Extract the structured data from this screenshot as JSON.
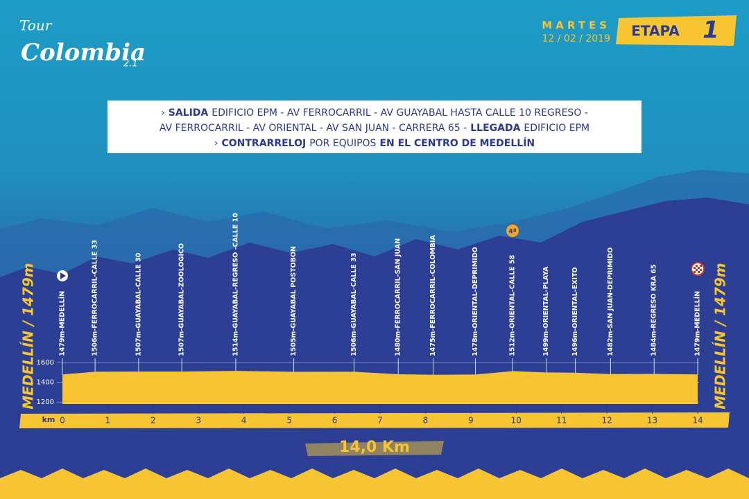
{
  "header": {
    "logo": {
      "line1": "Tour",
      "line2": "Colombia",
      "line3": "2.1"
    },
    "day": "MARTES",
    "date": "12 / 02 / 2019",
    "stage_label": "ETAPA",
    "stage_number": "1"
  },
  "route": {
    "lines": [
      [
        {
          "text": "›"
        },
        {
          "text": "SALIDA",
          "bold": true
        },
        {
          "text": "EDIFICIO EPM - AV FERROCARRIL - AV GUAYABAL HASTA CALLE 10 REGRESO -"
        }
      ],
      [
        {
          "text": "AV FERROCARRIL - AV ORIENTAL - AV SAN JUAN - CARRERA 65 -"
        },
        {
          "text": "LLEGADA",
          "bold": true
        },
        {
          "text": "EDIFICIO EPM"
        }
      ],
      [
        {
          "text": "›"
        },
        {
          "text": "CONTRARRELOJ",
          "bold": true
        },
        {
          "text": "POR EQUIPOS"
        },
        {
          "text": "EN EL CENTRO DE MEDELLÍN",
          "bold": true
        }
      ]
    ]
  },
  "chart_data": {
    "type": "area",
    "side_label": "MEDELLÍN / 1479m",
    "distance_label": "14,0 Km",
    "x_axis_label": "km",
    "x": [
      0,
      0.72,
      1.68,
      2.63,
      3.82,
      5.1,
      6.43,
      7.4,
      8.17,
      9.1,
      9.92,
      10.66,
      11.3,
      12.08,
      13.04,
      14
    ],
    "values": [
      1479,
      1506,
      1507,
      1507,
      1514,
      1505,
      1506,
      1480,
      1475,
      1478,
      1512,
      1499,
      1496,
      1482,
      1484,
      1479
    ],
    "point_labels": [
      "1479m-MEDELLÍN",
      "1506m-FERROCARRIL-CALLE 33",
      "1507m-GUAYABAL-CALLE 30",
      "1507m-GUAYABAL-ZOOLOGICO",
      "1514m-GUAYABAL-REGRESO -CALLE 10",
      "1505m-GUAYABAL POSTOBON",
      "1506m-GUAYABAL-CALLE 33",
      "1480m-FERROCARRIL-SAN JUAN",
      "1475m-FERROCARRIL-COLOMBIA",
      "1478m-ORIENTAL-DEPRIMIDO",
      "1512m-ORIENTAL-CALLE 58",
      "1499m-ORIENTAL-PLAYA",
      "1496m-ORIENTAL-EXITO",
      "1482m-SAN JUAN-DEPRIMIDO",
      "1484m-REGRESO KRA 65",
      "1479m-MEDELLÍN"
    ],
    "climb": {
      "label": "4ª",
      "x": 9.92
    },
    "color": "#f6c531",
    "xlim": [
      0,
      14
    ],
    "xticks": [
      0,
      1,
      2,
      3,
      4,
      5,
      6,
      7,
      8,
      9,
      10,
      11,
      12,
      13,
      14
    ],
    "ylim": [
      1180,
      1620
    ],
    "yticks": [
      1200,
      1400,
      1600
    ],
    "grid": true
  }
}
